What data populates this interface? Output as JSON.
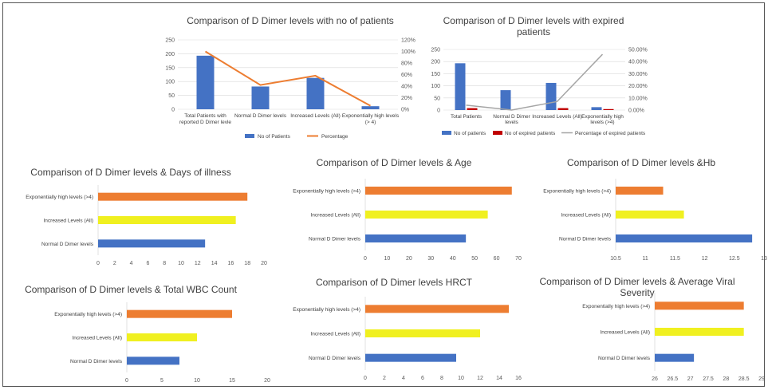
{
  "colors": {
    "blue": "#4472c4",
    "orange": "#ed7d31",
    "yellow": "#f0f020",
    "red": "#c00000",
    "gray": "#a5a5a5"
  },
  "chart_data": [
    {
      "type": "bar",
      "title": "Comparison  of D Dimer levels with no of patients",
      "categories": [
        "Total Patients with reported D Dimer levle",
        "Normal D Dimer levels",
        "Increased Levels (All)",
        "Exponentially high levels (> 4)"
      ],
      "y_ticks": [
        "0",
        "50",
        "100",
        "150",
        "200",
        "250"
      ],
      "y2_ticks": [
        "0%",
        "20%",
        "40%",
        "60%",
        "80%",
        "100%",
        "120%"
      ],
      "ylim": [
        0,
        250
      ],
      "y2lim": [
        0,
        120
      ],
      "series": [
        {
          "name": "No of Patients",
          "kind": "bar",
          "color": "#4472c4",
          "values": [
            193,
            82,
            113,
            11
          ]
        },
        {
          "name": "Percentage",
          "kind": "line",
          "axis": "secondary",
          "color": "#ed7d31",
          "values": [
            100,
            42,
            58,
            6
          ]
        }
      ],
      "legend": "bottom"
    },
    {
      "type": "bar",
      "title": "Comparison  of D Dimer levels with expired patients",
      "categories": [
        "Total Patients",
        "Normal D Dimer levels",
        "Increased Levels (All)",
        "Exponentially high levels (>4)"
      ],
      "y_ticks": [
        "0",
        "50",
        "100",
        "150",
        "200",
        "250"
      ],
      "y2_ticks": [
        "0.00%",
        "10.00%",
        "20.00%",
        "30.00%",
        "40.00%",
        "50.00%"
      ],
      "ylim": [
        0,
        250
      ],
      "y2lim": [
        0,
        50
      ],
      "series": [
        {
          "name": "No of patients",
          "kind": "bar",
          "color": "#4472c4",
          "values": [
            193,
            82,
            112,
            12
          ]
        },
        {
          "name": "No of expired patients",
          "kind": "bar",
          "color": "#c00000",
          "values": [
            8,
            0,
            8,
            4
          ]
        },
        {
          "name": "Percentage of expired patients",
          "kind": "line",
          "axis": "secondary",
          "color": "#a5a5a5",
          "values": [
            4,
            0,
            7,
            46
          ]
        }
      ],
      "legend": "bottom"
    },
    {
      "type": "bar",
      "orientation": "horizontal",
      "title": "Comparison  of D Dimer levels & Days of illness",
      "categories": [
        "Exponentially high levels (>4)",
        "Increased Levels (All)",
        "Normal D Dimer levels"
      ],
      "values": [
        18,
        16.6,
        12.9
      ],
      "colors": [
        "#ed7d31",
        "#f0f020",
        "#4472c4"
      ],
      "x_ticks": [
        "0",
        "2",
        "4",
        "6",
        "8",
        "10",
        "12",
        "14",
        "16",
        "18",
        "20"
      ],
      "xlim": [
        0,
        20
      ]
    },
    {
      "type": "bar",
      "orientation": "horizontal",
      "title": "Comparison  of D Dimer levels & Age",
      "categories": [
        "Exponentially high levels (>4)",
        "Increased Levels (All)",
        "Normal D Dimer levels"
      ],
      "values": [
        67,
        56,
        46
      ],
      "colors": [
        "#ed7d31",
        "#f0f020",
        "#4472c4"
      ],
      "x_ticks": [
        "0",
        "10",
        "20",
        "30",
        "40",
        "50",
        "60",
        "70"
      ],
      "xlim": [
        0,
        70
      ]
    },
    {
      "type": "bar",
      "orientation": "horizontal",
      "title": "Comparison  of D Dimer levels &Hb",
      "categories": [
        "Exponentially high levels (>4)",
        "Increased Levels (All)",
        "Normal D Dimer levels"
      ],
      "values": [
        11.3,
        11.65,
        12.8
      ],
      "colors": [
        "#ed7d31",
        "#f0f020",
        "#4472c4"
      ],
      "x_ticks": [
        "10.5",
        "11",
        "11.5",
        "12",
        "12.5",
        "13"
      ],
      "xlim": [
        10.5,
        13
      ]
    },
    {
      "type": "bar",
      "orientation": "horizontal",
      "title": "Comparison  of D Dimer levels & Total WBC Count",
      "categories": [
        "Exponentially high levels (>4)",
        "Increased Levels (All)",
        "Normal D Dimer levels"
      ],
      "values": [
        15,
        10,
        7.5
      ],
      "colors": [
        "#ed7d31",
        "#f0f020",
        "#4472c4"
      ],
      "x_ticks": [
        "0",
        "5",
        "10",
        "15",
        "20"
      ],
      "xlim": [
        0,
        20
      ]
    },
    {
      "type": "bar",
      "orientation": "horizontal",
      "title": "Comparison  of D Dimer levels HRCT",
      "categories": [
        "Exponentially high levels (>4)",
        "Increased Levels (All)",
        "Normal D Dimer levels"
      ],
      "values": [
        15,
        12,
        9.5
      ],
      "colors": [
        "#ed7d31",
        "#f0f020",
        "#4472c4"
      ],
      "x_ticks": [
        "0",
        "2",
        "4",
        "6",
        "8",
        "10",
        "12",
        "14",
        "16"
      ],
      "xlim": [
        0,
        16
      ]
    },
    {
      "type": "bar",
      "orientation": "horizontal",
      "title": "Comparison  of D Dimer levels & Average Viral Severity",
      "categories": [
        "Exponentially high levels (>4)",
        "Increased Levels (All)",
        "Normal D Dimer levels"
      ],
      "values": [
        28.5,
        28.5,
        27.1
      ],
      "colors": [
        "#ed7d31",
        "#f0f020",
        "#4472c4"
      ],
      "x_ticks": [
        "26",
        "26.5",
        "27",
        "27.5",
        "28",
        "28.5",
        "29"
      ],
      "xlim": [
        26,
        29
      ]
    }
  ]
}
